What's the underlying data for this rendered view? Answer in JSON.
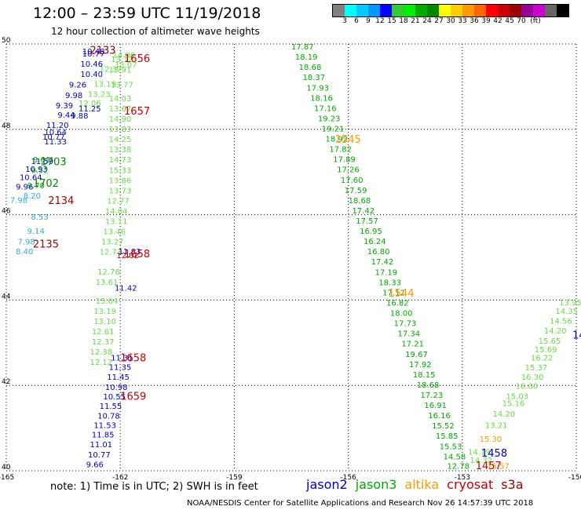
{
  "header": {
    "title": "12:00 – 23:59 UTC 11/19/2018",
    "subtitle": "12 hour collection of altimeter wave heights"
  },
  "colorbar": {
    "unit": "(ft)",
    "colors": [
      "#808080",
      "#00ffff",
      "#00ccff",
      "#0099ff",
      "#0000ff",
      "#33cc33",
      "#00ee00",
      "#00aa00",
      "#008800",
      "#ffff00",
      "#ffcc00",
      "#ff9900",
      "#ff6600",
      "#ff0000",
      "#cc0000",
      "#990000",
      "#990099",
      "#cc00cc",
      "#666666",
      "#000000"
    ],
    "ticks": [
      "3",
      "6",
      "9",
      "12",
      "15",
      "18",
      "21",
      "24",
      "27",
      "30",
      "33",
      "36",
      "39",
      "42",
      "45",
      "70"
    ]
  },
  "map": {
    "lon_min": -165,
    "lon_max": -150,
    "lat_min": 40,
    "lat_max": 50,
    "x_ticks": [
      "-165",
      "-162",
      "-159",
      "-156",
      "-153",
      "-150"
    ],
    "y_ticks": [
      "50",
      "48",
      "46",
      "44",
      "42",
      "40"
    ]
  },
  "chart_data": {
    "type": "scatter",
    "title": "12:00 – 23:59 UTC 11/19/2018",
    "series": [
      {
        "name": "jason2",
        "color": "#0000cc",
        "points": [
          {
            "lon": -163.0,
            "lat": 49.76,
            "v": "10.48"
          },
          {
            "lon": -163.0,
            "lat": 49.71,
            "v": "10.77"
          },
          {
            "lon": -163.05,
            "lat": 49.47,
            "v": "10.46"
          },
          {
            "lon": -163.05,
            "lat": 49.23,
            "v": "10.40"
          },
          {
            "lon": -163.35,
            "lat": 48.98,
            "v": "9.26"
          },
          {
            "lon": -163.45,
            "lat": 48.73,
            "v": "9.98"
          },
          {
            "lon": -163.7,
            "lat": 48.49,
            "v": "9.39"
          },
          {
            "lon": -163.1,
            "lat": 48.42,
            "v": "11.25"
          },
          {
            "lon": -163.65,
            "lat": 48.27,
            "v": "9.44"
          },
          {
            "lon": -163.3,
            "lat": 48.25,
            "v": "9.88"
          },
          {
            "lon": -163.95,
            "lat": 48.03,
            "v": "11.20"
          },
          {
            "lon": -164.0,
            "lat": 47.87,
            "v": "10.64"
          },
          {
            "lon": -164.05,
            "lat": 47.76,
            "v": "10.77"
          },
          {
            "lon": -164.0,
            "lat": 47.65,
            "v": "11.33"
          },
          {
            "lon": -164.35,
            "lat": 47.19,
            "v": "11.59"
          },
          {
            "lon": -164.5,
            "lat": 47.0,
            "v": "10.93"
          },
          {
            "lon": -164.65,
            "lat": 46.81,
            "v": "10.64"
          },
          {
            "lon": -164.75,
            "lat": 46.59,
            "v": "9.96"
          },
          {
            "lon": -162.05,
            "lat": 45.07,
            "v": "11.83"
          },
          {
            "lon": -162.15,
            "lat": 44.22,
            "v": "11.42"
          },
          {
            "lon": -162.25,
            "lat": 42.58,
            "v": "11.31"
          },
          {
            "lon": -162.3,
            "lat": 42.36,
            "v": "11.35"
          },
          {
            "lon": -162.35,
            "lat": 42.13,
            "v": "11.45"
          },
          {
            "lon": -162.4,
            "lat": 41.89,
            "v": "10.98"
          },
          {
            "lon": -162.45,
            "lat": 41.67,
            "v": "10.55"
          },
          {
            "lon": -162.55,
            "lat": 41.45,
            "v": "11.55"
          },
          {
            "lon": -162.6,
            "lat": 41.22,
            "v": "10.78"
          },
          {
            "lon": -162.7,
            "lat": 41.0,
            "v": "11.53"
          },
          {
            "lon": -162.75,
            "lat": 40.78,
            "v": "11.85"
          },
          {
            "lon": -162.8,
            "lat": 40.55,
            "v": "11.01"
          },
          {
            "lon": -162.85,
            "lat": 40.31,
            "v": "10.77"
          },
          {
            "lon": -162.9,
            "lat": 40.08,
            "v": "9.66"
          }
        ]
      },
      {
        "name": "jason3",
        "color": "#00aa00",
        "points": [
          {
            "lon": -157.5,
            "lat": 49.87,
            "v": "17.87"
          },
          {
            "lon": -157.4,
            "lat": 49.63,
            "v": "18.19"
          },
          {
            "lon": -157.3,
            "lat": 49.39,
            "v": "18.68"
          },
          {
            "lon": -157.2,
            "lat": 49.15,
            "v": "18.37"
          },
          {
            "lon": -157.1,
            "lat": 48.91,
            "v": "17.93"
          },
          {
            "lon": -157.0,
            "lat": 48.67,
            "v": "18.16"
          },
          {
            "lon": -156.9,
            "lat": 48.43,
            "v": "17.16"
          },
          {
            "lon": -156.8,
            "lat": 48.19,
            "v": "19.23"
          },
          {
            "lon": -156.7,
            "lat": 47.95,
            "v": "19.21"
          },
          {
            "lon": -156.6,
            "lat": 47.71,
            "v": "18.92"
          },
          {
            "lon": -156.5,
            "lat": 47.47,
            "v": "17.82"
          },
          {
            "lon": -156.4,
            "lat": 47.23,
            "v": "17.89"
          },
          {
            "lon": -156.3,
            "lat": 46.99,
            "v": "17.26"
          },
          {
            "lon": -156.2,
            "lat": 46.75,
            "v": "17.60"
          },
          {
            "lon": -156.1,
            "lat": 46.51,
            "v": "17.59"
          },
          {
            "lon": -156.0,
            "lat": 46.27,
            "v": "18.68"
          },
          {
            "lon": -155.9,
            "lat": 46.03,
            "v": "17.42"
          },
          {
            "lon": -155.8,
            "lat": 45.79,
            "v": "17.57"
          },
          {
            "lon": -155.7,
            "lat": 45.55,
            "v": "16.95"
          },
          {
            "lon": -155.6,
            "lat": 45.31,
            "v": "16.24"
          },
          {
            "lon": -155.5,
            "lat": 45.07,
            "v": "16.80"
          },
          {
            "lon": -155.4,
            "lat": 44.83,
            "v": "17.42"
          },
          {
            "lon": -155.3,
            "lat": 44.59,
            "v": "17.19"
          },
          {
            "lon": -155.2,
            "lat": 44.35,
            "v": "18.33"
          },
          {
            "lon": -155.1,
            "lat": 44.11,
            "v": "17.12"
          },
          {
            "lon": -155.0,
            "lat": 43.87,
            "v": "16.82"
          },
          {
            "lon": -154.9,
            "lat": 43.63,
            "v": "18.00"
          },
          {
            "lon": -154.8,
            "lat": 43.39,
            "v": "17.73"
          },
          {
            "lon": -154.7,
            "lat": 43.15,
            "v": "17.34"
          },
          {
            "lon": -154.6,
            "lat": 42.91,
            "v": "17.21"
          },
          {
            "lon": -154.5,
            "lat": 42.67,
            "v": "19.67"
          },
          {
            "lon": -154.4,
            "lat": 42.43,
            "v": "17.92"
          },
          {
            "lon": -154.3,
            "lat": 42.19,
            "v": "18.15"
          },
          {
            "lon": -154.2,
            "lat": 41.95,
            "v": "18.68"
          },
          {
            "lon": -154.1,
            "lat": 41.71,
            "v": "17.23"
          },
          {
            "lon": -154.0,
            "lat": 41.47,
            "v": "16.91"
          },
          {
            "lon": -153.9,
            "lat": 41.23,
            "v": "16.16"
          },
          {
            "lon": -153.8,
            "lat": 40.99,
            "v": "15.52"
          },
          {
            "lon": -153.7,
            "lat": 40.75,
            "v": "15.85"
          },
          {
            "lon": -153.6,
            "lat": 40.51,
            "v": "15.53"
          },
          {
            "lon": -153.5,
            "lat": 40.27,
            "v": "14.58"
          },
          {
            "lon": -153.4,
            "lat": 40.05,
            "v": "12.78"
          },
          {
            "lon": -164.3,
            "lat": 47.22,
            "v": "8.61"
          },
          {
            "lon": -164.35,
            "lat": 46.98,
            "v": "9.52"
          },
          {
            "lon": -164.45,
            "lat": 46.62,
            "v": "9.70"
          }
        ]
      },
      {
        "name": "altika",
        "color": "#ff9900",
        "points": [
          {
            "lon": -152.55,
            "lat": 40.68,
            "v": "15.30"
          },
          {
            "lon": -152.35,
            "lat": 40.05,
            "v": "15.57"
          }
        ]
      },
      {
        "name": "cryosat",
        "color": "#cc0000",
        "points": [
          {
            "lon": -162.1,
            "lat": 44.98,
            "v": "12.02"
          }
        ]
      },
      {
        "name": "s3a",
        "color": "#990000",
        "points": []
      }
    ],
    "light_tracks": [
      {
        "color": "#66dd44",
        "points": [
          {
            "lon": -162.2,
            "lat": 49.68,
            "v": "14.96"
          },
          {
            "lon": -162.25,
            "lat": 49.58,
            "v": "13.12"
          },
          {
            "lon": -162.15,
            "lat": 49.45,
            "v": "13.07"
          },
          {
            "lon": -162.55,
            "lat": 49.35,
            "v": "12.37"
          },
          {
            "lon": -162.3,
            "lat": 49.33,
            "v": "13.91"
          },
          {
            "lon": -162.7,
            "lat": 49.0,
            "v": "13.19"
          },
          {
            "lon": -162.25,
            "lat": 48.98,
            "v": "13.77"
          },
          {
            "lon": -162.85,
            "lat": 48.76,
            "v": "13.23"
          },
          {
            "lon": -163.1,
            "lat": 48.55,
            "v": "12.06"
          },
          {
            "lon": -162.3,
            "lat": 48.66,
            "v": "14.03"
          },
          {
            "lon": -162.3,
            "lat": 48.42,
            "v": "13.67"
          },
          {
            "lon": -162.3,
            "lat": 48.18,
            "v": "14.90"
          },
          {
            "lon": -162.3,
            "lat": 47.94,
            "v": "13.83"
          },
          {
            "lon": -162.3,
            "lat": 47.7,
            "v": "14.25"
          },
          {
            "lon": -162.3,
            "lat": 47.46,
            "v": "13.38"
          },
          {
            "lon": -162.3,
            "lat": 47.22,
            "v": "14.73"
          },
          {
            "lon": -162.3,
            "lat": 46.98,
            "v": "15.33"
          },
          {
            "lon": -162.3,
            "lat": 46.74,
            "v": "13.86"
          },
          {
            "lon": -162.3,
            "lat": 46.5,
            "v": "13.73"
          },
          {
            "lon": -162.35,
            "lat": 46.26,
            "v": "12.77"
          },
          {
            "lon": -162.4,
            "lat": 46.02,
            "v": "14.04"
          },
          {
            "lon": -162.4,
            "lat": 45.78,
            "v": "13.11"
          },
          {
            "lon": -162.45,
            "lat": 45.54,
            "v": "13.46"
          },
          {
            "lon": -162.5,
            "lat": 45.3,
            "v": "13.27"
          },
          {
            "lon": -162.55,
            "lat": 45.06,
            "v": "12.73"
          },
          {
            "lon": -162.6,
            "lat": 44.6,
            "v": "12.76"
          },
          {
            "lon": -162.65,
            "lat": 44.36,
            "v": "13.61"
          },
          {
            "lon": -162.65,
            "lat": 43.92,
            "v": "15.04"
          },
          {
            "lon": -162.7,
            "lat": 43.68,
            "v": "13.19"
          },
          {
            "lon": -162.7,
            "lat": 43.44,
            "v": "13.10"
          },
          {
            "lon": -162.75,
            "lat": 43.2,
            "v": "12.61"
          },
          {
            "lon": -162.75,
            "lat": 42.96,
            "v": "12.37"
          },
          {
            "lon": -162.8,
            "lat": 42.72,
            "v": "12.38"
          },
          {
            "lon": -162.8,
            "lat": 42.48,
            "v": "12.12"
          },
          {
            "lon": -152.4,
            "lat": 41.0,
            "v": "13.21"
          },
          {
            "lon": -152.2,
            "lat": 41.27,
            "v": "14.20"
          },
          {
            "lon": -151.95,
            "lat": 41.52,
            "v": "15.16"
          },
          {
            "lon": -151.85,
            "lat": 41.68,
            "v": "15.03"
          },
          {
            "lon": -151.6,
            "lat": 41.92,
            "v": "16.00"
          },
          {
            "lon": -151.45,
            "lat": 42.13,
            "v": "16.30"
          },
          {
            "lon": -151.35,
            "lat": 42.35,
            "v": "15.37"
          },
          {
            "lon": -151.2,
            "lat": 42.58,
            "v": "16.22"
          },
          {
            "lon": -151.1,
            "lat": 42.78,
            "v": "15.69"
          },
          {
            "lon": -151.0,
            "lat": 42.98,
            "v": "15.65"
          },
          {
            "lon": -150.85,
            "lat": 43.22,
            "v": "14.20"
          },
          {
            "lon": -150.7,
            "lat": 43.45,
            "v": "14.56"
          },
          {
            "lon": -150.55,
            "lat": 43.68,
            "v": "14.35"
          },
          {
            "lon": -150.45,
            "lat": 43.88,
            "v": "13.95"
          },
          {
            "lon": -152.85,
            "lat": 40.38,
            "v": "14.19"
          },
          {
            "lon": -152.8,
            "lat": 40.18,
            "v": "14.32"
          }
        ]
      },
      {
        "color": "#33aadd",
        "points": [
          {
            "lon": -164.9,
            "lat": 46.28,
            "v": "7.98"
          },
          {
            "lon": -164.55,
            "lat": 46.38,
            "v": "8.20"
          },
          {
            "lon": -164.35,
            "lat": 45.88,
            "v": "8.53"
          },
          {
            "lon": -164.45,
            "lat": 45.55,
            "v": "9.14"
          },
          {
            "lon": -164.7,
            "lat": 45.3,
            "v": "7.98"
          },
          {
            "lon": -164.75,
            "lat": 45.07,
            "v": "8.40"
          }
        ]
      }
    ],
    "time_labels": [
      {
        "lon": -162.8,
        "lat": 49.77,
        "v": "2133",
        "color": "#990000"
      },
      {
        "lon": -161.9,
        "lat": 49.58,
        "v": "1656",
        "color": "#cc0000"
      },
      {
        "lon": -161.9,
        "lat": 48.35,
        "v": "1657",
        "color": "#cc0000"
      },
      {
        "lon": -164.1,
        "lat": 47.16,
        "v": "1703",
        "color": "#008800"
      },
      {
        "lon": -164.3,
        "lat": 46.65,
        "v": "1702",
        "color": "#008800"
      },
      {
        "lon": -163.9,
        "lat": 46.25,
        "v": "2134",
        "color": "#990000"
      },
      {
        "lon": -164.3,
        "lat": 45.23,
        "v": "2135",
        "color": "#990000"
      },
      {
        "lon": -161.9,
        "lat": 45.0,
        "v": "1658",
        "color": "#cc0000"
      },
      {
        "lon": -162.0,
        "lat": 42.56,
        "v": "1658",
        "color": "#cc0000"
      },
      {
        "lon": -162.0,
        "lat": 41.66,
        "v": "1659",
        "color": "#cc0000"
      },
      {
        "lon": -156.35,
        "lat": 47.68,
        "v": "1545",
        "color": "#ff9900"
      },
      {
        "lon": -154.95,
        "lat": 44.08,
        "v": "1544",
        "color": "#ff9900"
      },
      {
        "lon": -152.5,
        "lat": 40.33,
        "v": "1458",
        "color": "#0000cc"
      },
      {
        "lon": -152.65,
        "lat": 40.04,
        "v": "1457",
        "color": "#cc0000"
      },
      {
        "lon": -150.1,
        "lat": 43.1,
        "v": "14",
        "color": "#0000cc"
      }
    ]
  },
  "footer": {
    "note": "note:  1) Time is in UTC;  2) SWH is in feet",
    "legend": [
      {
        "name": "jason2",
        "color": "#0000cc"
      },
      {
        "name": "jason3",
        "color": "#00aa00"
      },
      {
        "name": "altika",
        "color": "#ff9900"
      },
      {
        "name": "cryosat",
        "color": "#cc0000"
      },
      {
        "name": "s3a",
        "color": "#990000"
      }
    ],
    "credit": "NOAA/NESDIS Center for Satellite Applications and Research    Nov 26 14:57:39 UTC 2018"
  }
}
